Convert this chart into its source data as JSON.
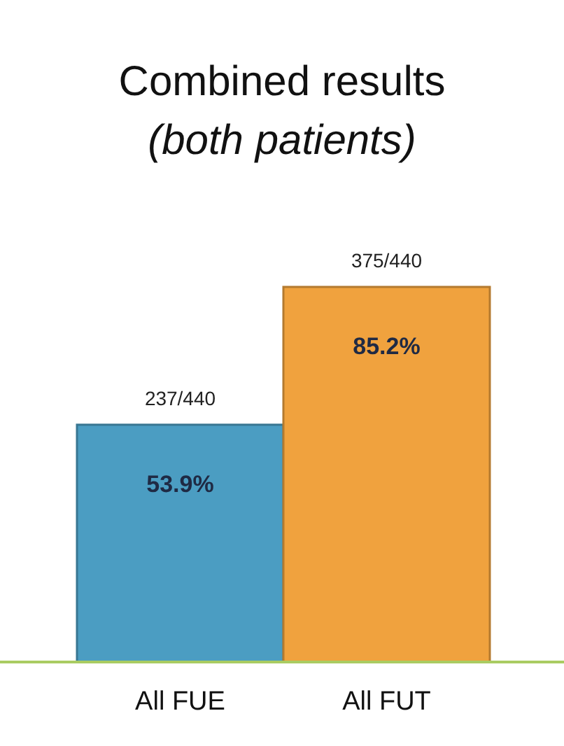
{
  "chart_data": {
    "type": "bar",
    "title": "Combined results",
    "subtitle": "(both patients)",
    "categories": [
      "All FUE",
      "All FUT"
    ],
    "values": [
      53.9,
      85.2
    ],
    "colors": [
      "#4b9dc2",
      "#f0a23e"
    ],
    "value_labels": [
      "53.9%",
      "85.2%"
    ],
    "tick_labels": "x",
    "annotations": [
      {
        "text": "237/440",
        "x": "All FUE",
        "y": 53.9
      },
      {
        "text": "375/440",
        "x": "All FUT",
        "y": 85.2
      }
    ]
  }
}
